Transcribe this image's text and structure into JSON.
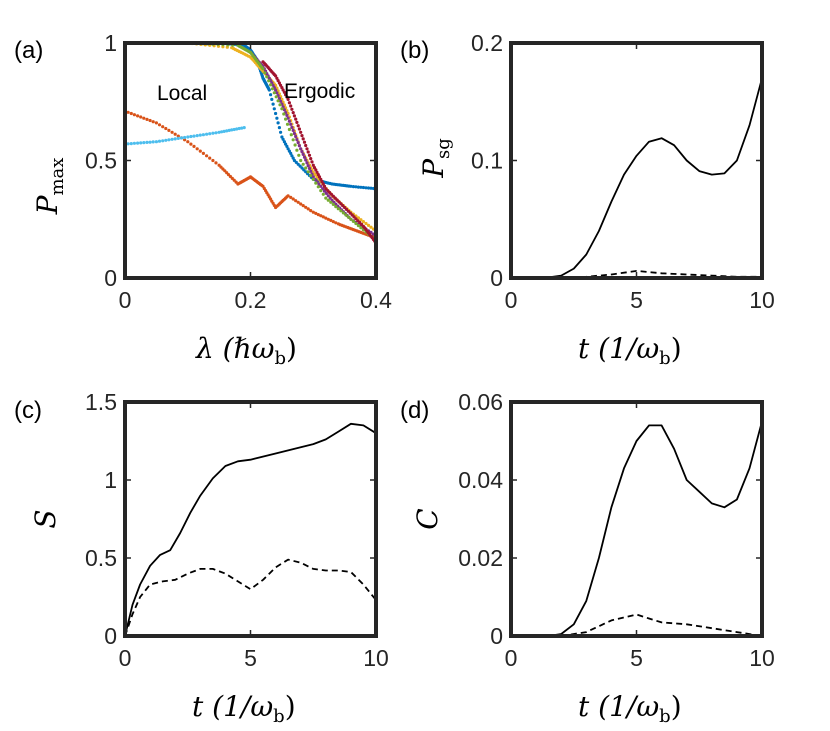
{
  "panel_labels": [
    "(a)",
    "(b)",
    "(c)",
    "(d)"
  ],
  "annotations": {
    "local": "Local",
    "ergodic": "Ergodic"
  },
  "axis_labels": {
    "a": {
      "x_main": "λ (ℏω",
      "x_sub": "b",
      "x_close": ")",
      "y_main": "P",
      "y_sub": "max"
    },
    "b": {
      "x_main": "t (1/ω",
      "x_sub": "b",
      "x_close": ")",
      "y_main": "P",
      "y_sub": "sg"
    },
    "c": {
      "x_main": "t (1/ω",
      "x_sub": "b",
      "x_close": ")",
      "y_main": "S"
    },
    "d": {
      "x_main": "t (1/ω",
      "x_sub": "b",
      "x_close": ")",
      "y_main": "C"
    }
  },
  "chart_data": [
    {
      "panel": "(a)",
      "type": "scatter",
      "xlim": [
        0,
        0.4
      ],
      "ylim": [
        0,
        1
      ],
      "xticks": [
        "0",
        "0.2",
        "0.4"
      ],
      "xtick_values": [
        0,
        0.2,
        0.4
      ],
      "yticks": [
        "0",
        "0.5",
        "1"
      ],
      "ytick_values": [
        0,
        0.5,
        1
      ],
      "colors": [
        "#0072BD",
        "#D95319",
        "#EDB120",
        "#7E2F8E",
        "#77AC30",
        "#4DBEEE",
        "#A2142F"
      ],
      "series": [
        {
          "color": "#0072BD",
          "x": [
            0,
            0.1,
            0.15,
            0.19,
            0.2,
            0.21,
            0.22,
            0.23,
            0.25,
            0.27,
            0.3,
            0.33,
            0.36,
            0.4
          ],
          "y": [
            1,
            1,
            1,
            0.99,
            0.97,
            0.93,
            0.85,
            0.8,
            0.6,
            0.5,
            0.42,
            0.4,
            0.39,
            0.38
          ]
        },
        {
          "color": "#D95319",
          "x": [
            0,
            0.05,
            0.1,
            0.15,
            0.18,
            0.2,
            0.22,
            0.24,
            0.26,
            0.3,
            0.34,
            0.37,
            0.4
          ],
          "y": [
            0.71,
            0.66,
            0.58,
            0.48,
            0.4,
            0.43,
            0.39,
            0.3,
            0.35,
            0.28,
            0.23,
            0.2,
            0.17
          ]
        },
        {
          "color": "#EDB120",
          "x": [
            0,
            0.1,
            0.17,
            0.2,
            0.22,
            0.24,
            0.26,
            0.28,
            0.3,
            0.33,
            0.36,
            0.4
          ],
          "y": [
            1,
            1,
            0.98,
            0.94,
            0.88,
            0.82,
            0.7,
            0.55,
            0.45,
            0.35,
            0.28,
            0.2
          ]
        },
        {
          "color": "#7E2F8E",
          "x": [
            0.2,
            0.22,
            0.24,
            0.26,
            0.28,
            0.3,
            0.33,
            0.36,
            0.4
          ],
          "y": [
            0.96,
            0.9,
            0.8,
            0.68,
            0.55,
            0.43,
            0.33,
            0.25,
            0.18
          ]
        },
        {
          "color": "#77AC30",
          "x": [
            0,
            0.1,
            0.18,
            0.2,
            0.22,
            0.25,
            0.28,
            0.32,
            0.36,
            0.4
          ],
          "y": [
            1,
            1,
            0.99,
            0.96,
            0.89,
            0.72,
            0.5,
            0.34,
            0.25,
            0.16
          ]
        },
        {
          "color": "#4DBEEE",
          "x": [
            0,
            0.05,
            0.1,
            0.15,
            0.19
          ],
          "y": [
            0.57,
            0.58,
            0.6,
            0.62,
            0.64
          ]
        },
        {
          "color": "#A2142F",
          "x": [
            0.22,
            0.24,
            0.26,
            0.28,
            0.3,
            0.32,
            0.35,
            0.38,
            0.4
          ],
          "y": [
            0.92,
            0.86,
            0.76,
            0.62,
            0.48,
            0.38,
            0.3,
            0.22,
            0.15
          ]
        }
      ]
    },
    {
      "panel": "(b)",
      "type": "line",
      "xlim": [
        0,
        10
      ],
      "ylim": [
        0,
        0.2
      ],
      "xticks": [
        "0",
        "5",
        "10"
      ],
      "xtick_values": [
        0,
        5,
        10
      ],
      "yticks": [
        "0",
        "0.1",
        "0.2"
      ],
      "ytick_values": [
        0,
        0.1,
        0.2
      ],
      "series": [
        {
          "style": "solid",
          "x": [
            0,
            1,
            1.5,
            2,
            2.5,
            3,
            3.5,
            4,
            4.5,
            5,
            5.5,
            6,
            6.5,
            7,
            7.5,
            8,
            8.5,
            9,
            9.5,
            10
          ],
          "y": [
            0,
            0,
            0.0005,
            0.002,
            0.008,
            0.02,
            0.04,
            0.065,
            0.088,
            0.104,
            0.116,
            0.119,
            0.113,
            0.1,
            0.091,
            0.088,
            0.089,
            0.1,
            0.13,
            0.17
          ]
        },
        {
          "style": "dashed",
          "x": [
            0,
            2,
            3,
            4,
            5,
            6,
            7,
            8,
            9,
            10
          ],
          "y": [
            0,
            0,
            0.001,
            0.003,
            0.006,
            0.004,
            0.003,
            0.002,
            0.001,
            0.001
          ]
        }
      ]
    },
    {
      "panel": "(c)",
      "type": "line",
      "xlim": [
        0,
        10
      ],
      "ylim": [
        0,
        1.5
      ],
      "xticks": [
        "0",
        "5",
        "10"
      ],
      "xtick_values": [
        0,
        5,
        10
      ],
      "yticks": [
        "0",
        "0.5",
        "1",
        "1.5"
      ],
      "ytick_values": [
        0,
        0.5,
        1,
        1.5
      ],
      "series": [
        {
          "style": "solid",
          "x": [
            0,
            0.3,
            0.6,
            1,
            1.4,
            1.8,
            2.2,
            2.6,
            3,
            3.5,
            4,
            4.5,
            5,
            6,
            7,
            7.5,
            8,
            8.5,
            9,
            9.5,
            10
          ],
          "y": [
            0,
            0.2,
            0.33,
            0.45,
            0.52,
            0.55,
            0.66,
            0.79,
            0.9,
            1.01,
            1.09,
            1.12,
            1.13,
            1.17,
            1.21,
            1.23,
            1.26,
            1.31,
            1.36,
            1.35,
            1.3
          ]
        },
        {
          "style": "dashed",
          "x": [
            0,
            0.3,
            0.6,
            1,
            1.5,
            2,
            2.5,
            3,
            3.5,
            4,
            4.5,
            5,
            5.5,
            6,
            6.5,
            7,
            7.5,
            8,
            8.5,
            9,
            9.5,
            10
          ],
          "y": [
            0,
            0.14,
            0.25,
            0.33,
            0.35,
            0.36,
            0.4,
            0.43,
            0.43,
            0.4,
            0.35,
            0.3,
            0.36,
            0.44,
            0.49,
            0.47,
            0.43,
            0.42,
            0.42,
            0.41,
            0.33,
            0.23
          ]
        }
      ]
    },
    {
      "panel": "(d)",
      "type": "line",
      "xlim": [
        0,
        10
      ],
      "ylim": [
        0,
        0.06
      ],
      "xticks": [
        "0",
        "5",
        "10"
      ],
      "xtick_values": [
        0,
        5,
        10
      ],
      "yticks": [
        "0",
        "0.02",
        "0.04",
        "0.06"
      ],
      "ytick_values": [
        0,
        0.02,
        0.04,
        0.06
      ],
      "series": [
        {
          "style": "solid",
          "x": [
            0,
            1.5,
            2,
            2.5,
            3,
            3.5,
            4,
            4.5,
            5,
            5.5,
            6,
            6.5,
            7,
            7.5,
            8,
            8.5,
            9,
            9.5,
            10
          ],
          "y": [
            0,
            0,
            0.0005,
            0.003,
            0.009,
            0.02,
            0.033,
            0.043,
            0.05,
            0.054,
            0.054,
            0.048,
            0.04,
            0.037,
            0.034,
            0.033,
            0.035,
            0.043,
            0.055
          ]
        },
        {
          "style": "dashed",
          "x": [
            0,
            2,
            3,
            4,
            5,
            5.5,
            6,
            7,
            8,
            9,
            10
          ],
          "y": [
            0,
            0,
            0.001,
            0.004,
            0.0055,
            0.0045,
            0.0035,
            0.003,
            0.002,
            0.001,
            0
          ]
        }
      ]
    }
  ]
}
